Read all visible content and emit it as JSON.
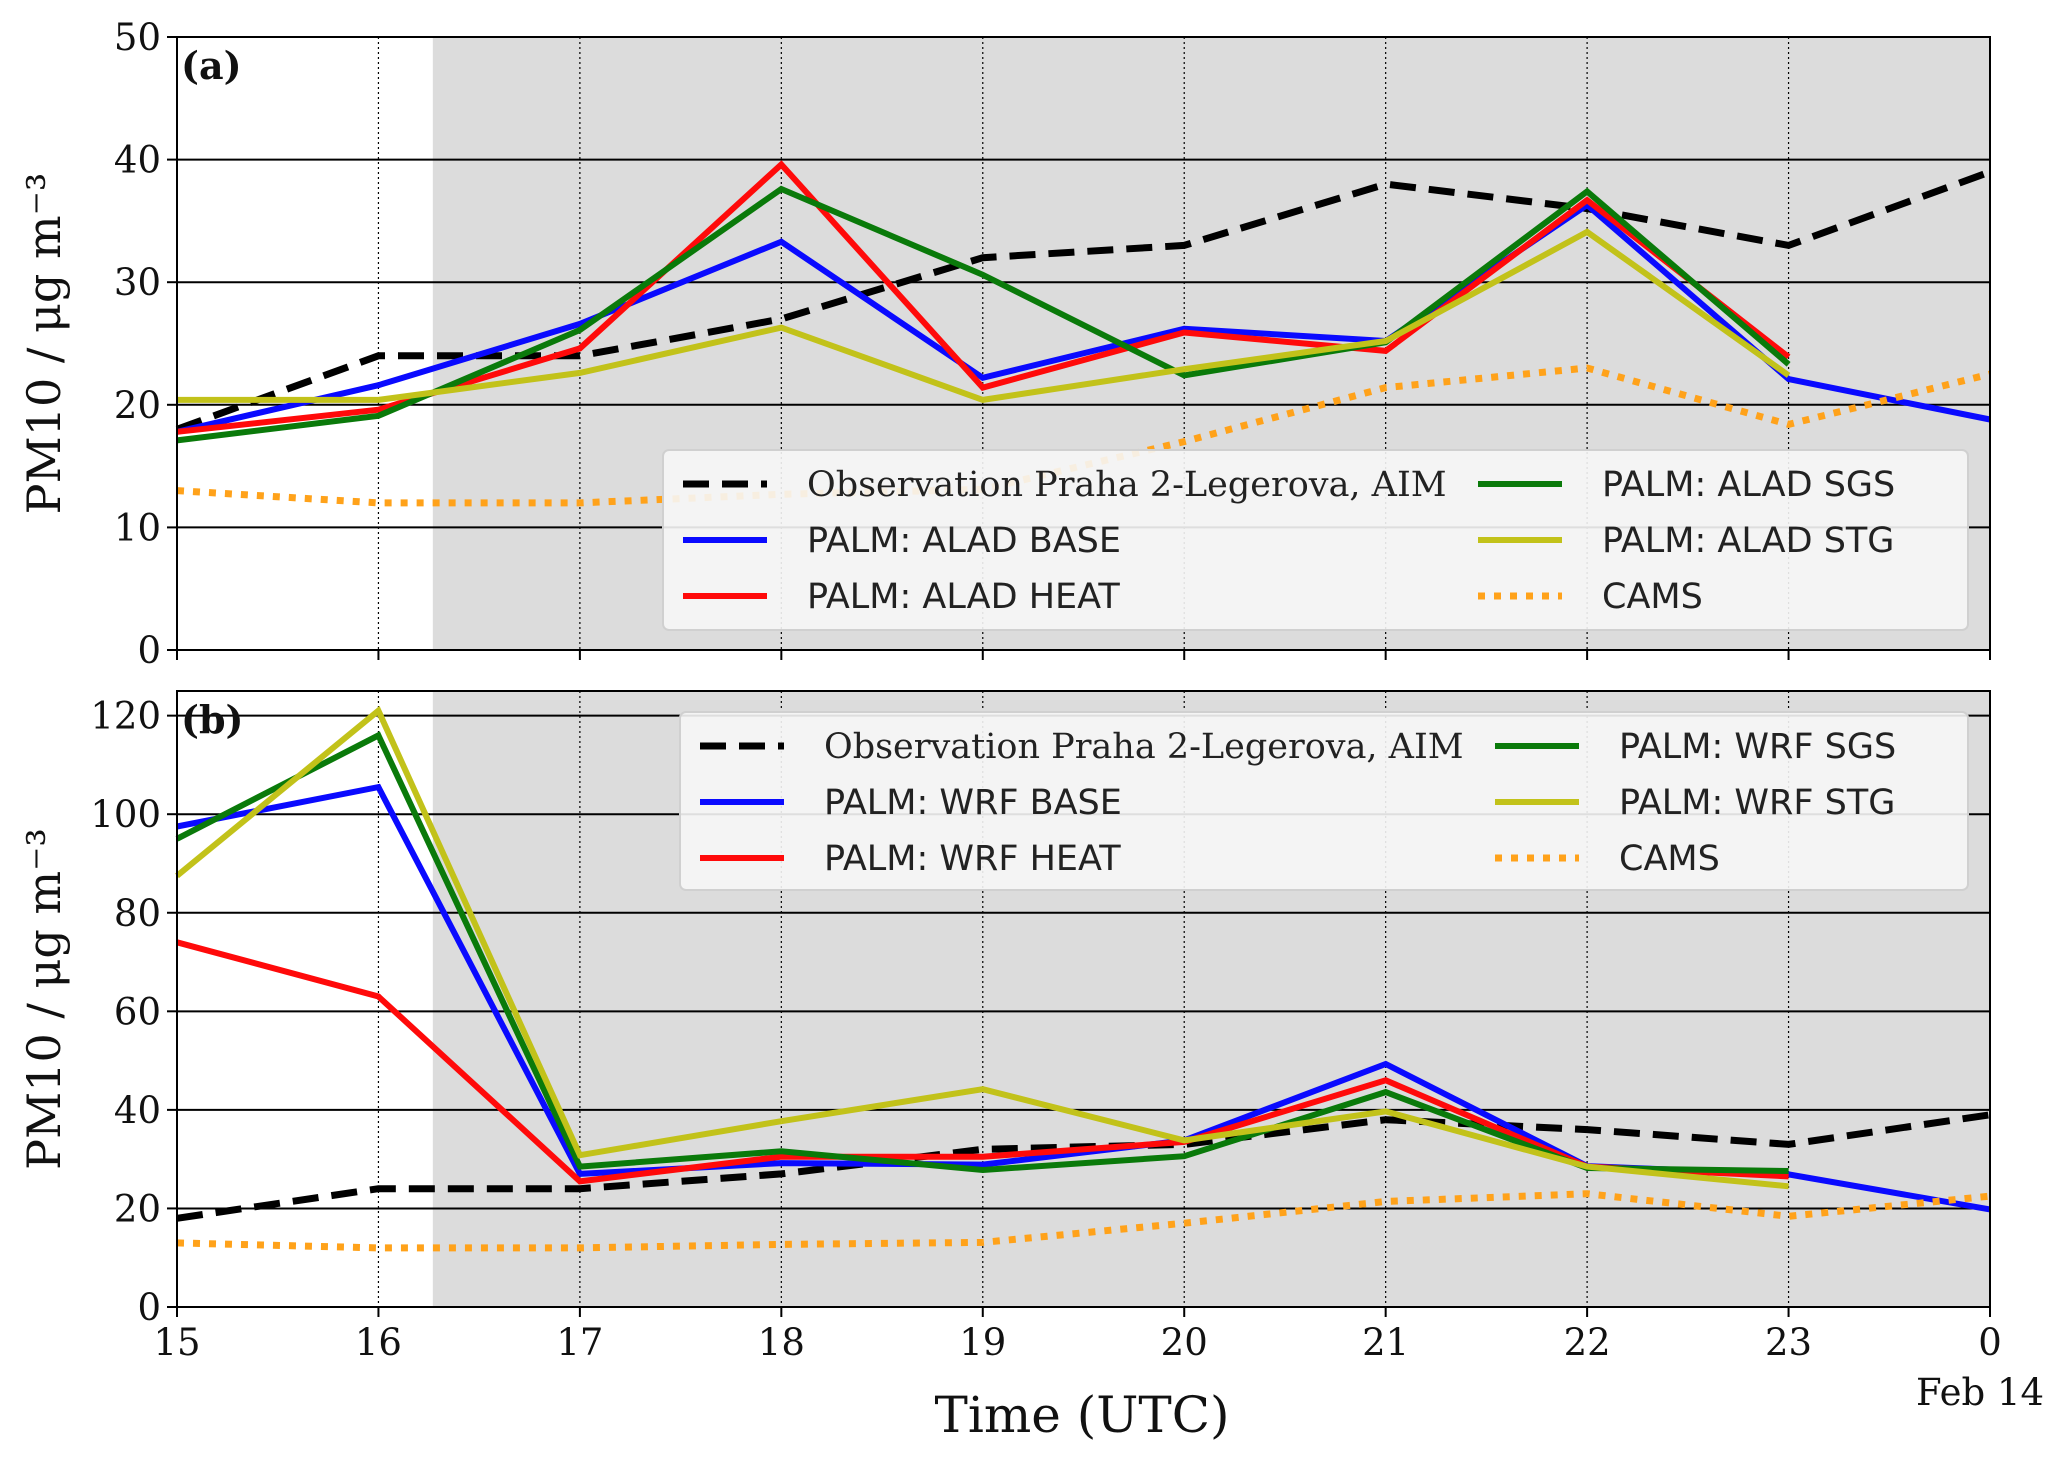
{
  "figure": {
    "xlabel": "Time (UTC)",
    "date_label": "Feb 14",
    "x_ticks": [
      15,
      16,
      17,
      18,
      19,
      20,
      21,
      22,
      23,
      0
    ],
    "shade_start": 16.27,
    "colors": {
      "observation": "#000000",
      "base": "#0a0aff",
      "heat": "#ff0a0a",
      "sgs": "#0a7a0a",
      "stg": "#c2c21a",
      "cams": "#ffa21a",
      "shade": "#dcdcdc"
    }
  },
  "chart_data": [
    {
      "type": "line",
      "panel_label": "(a)",
      "ylabel": "PM10 / μg m⁻³",
      "ylim": [
        0,
        50
      ],
      "y_ticks": [
        0,
        10,
        20,
        30,
        40,
        50
      ],
      "x": [
        15,
        16,
        17,
        18,
        19,
        20,
        21,
        22,
        23,
        24
      ],
      "grid": "horizontal solid, vertical dotted",
      "legend_position": "lower-right",
      "series": [
        {
          "name": "Observation Praha 2-Legerova, AIM",
          "style": "dashed",
          "color_key": "observation",
          "values": [
            18,
            24,
            24,
            27,
            32,
            33,
            38,
            36,
            33,
            39
          ]
        },
        {
          "name": "PALM: ALAD BASE",
          "style": "solid",
          "color_key": "base",
          "values": [
            17.8,
            21.6,
            26.6,
            33.3,
            22.2,
            26.2,
            25.2,
            36.3,
            22.1,
            18.8
          ]
        },
        {
          "name": "PALM: ALAD HEAT",
          "style": "solid",
          "color_key": "heat",
          "values": [
            17.8,
            19.6,
            24.6,
            39.6,
            21.4,
            25.9,
            24.4,
            36.7,
            23.9,
            null
          ]
        },
        {
          "name": "PALM: ALAD SGS",
          "style": "solid",
          "color_key": "sgs",
          "values": [
            17.1,
            19.1,
            26.1,
            37.6,
            30.6,
            22.4,
            25.1,
            37.4,
            23.3,
            null
          ]
        },
        {
          "name": "PALM: ALAD STG",
          "style": "solid",
          "color_key": "stg",
          "values": [
            20.4,
            20.4,
            22.6,
            26.3,
            20.4,
            22.9,
            25.2,
            34.1,
            22.4,
            null
          ]
        },
        {
          "name": "CAMS",
          "style": "dotted",
          "color_key": "cams",
          "values": [
            13,
            12,
            12,
            12.7,
            13.1,
            17,
            21.4,
            23,
            18.4,
            22.5
          ]
        }
      ]
    },
    {
      "type": "line",
      "panel_label": "(b)",
      "ylabel": "PM10 / μg m⁻³",
      "ylim": [
        0,
        125
      ],
      "y_ticks": [
        0,
        20,
        40,
        60,
        80,
        100,
        120
      ],
      "x": [
        15,
        16,
        17,
        18,
        19,
        20,
        21,
        22,
        23,
        24
      ],
      "grid": "horizontal solid, vertical dotted",
      "legend_position": "upper-right",
      "series": [
        {
          "name": "Observation Praha 2-Legerova, AIM",
          "style": "dashed",
          "color_key": "observation",
          "values": [
            18,
            24,
            24,
            27,
            32,
            33,
            38,
            36,
            33,
            39
          ]
        },
        {
          "name": "PALM: WRF BASE",
          "style": "solid",
          "color_key": "base",
          "values": [
            97.5,
            105.5,
            27,
            29.2,
            28.9,
            33.8,
            49.3,
            28.6,
            26.9,
            19.8
          ]
        },
        {
          "name": "PALM: WRF HEAT",
          "style": "solid",
          "color_key": "heat",
          "values": [
            74,
            63,
            25.5,
            30.5,
            30.5,
            33.5,
            46,
            28.5,
            26.5,
            null
          ]
        },
        {
          "name": "PALM: WRF SGS",
          "style": "solid",
          "color_key": "sgs",
          "values": [
            95,
            116,
            28.5,
            31.6,
            27.8,
            30.6,
            43.6,
            28.2,
            27.6,
            null
          ]
        },
        {
          "name": "PALM: WRF STG",
          "style": "solid",
          "color_key": "stg",
          "values": [
            87.5,
            121,
            30.8,
            37.7,
            44.2,
            33.8,
            39.7,
            28.5,
            24.5,
            null
          ]
        },
        {
          "name": "CAMS",
          "style": "dotted",
          "color_key": "cams",
          "values": [
            13,
            12,
            12,
            12.7,
            13.1,
            17,
            21.4,
            23,
            18.4,
            22.5
          ]
        }
      ]
    }
  ]
}
